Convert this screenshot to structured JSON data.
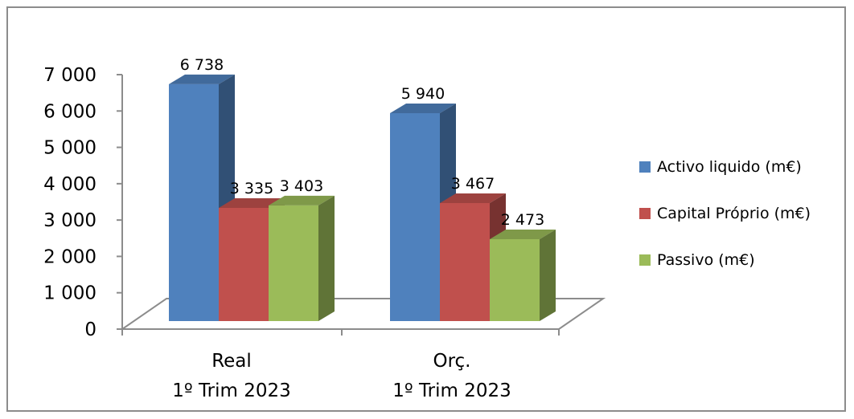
{
  "chart_data": {
    "type": "bar",
    "title": "",
    "xlabel": "",
    "ylabel": "",
    "ylim": [
      0,
      7000
    ],
    "yticks": [
      0,
      1000,
      2000,
      3000,
      4000,
      5000,
      6000,
      7000
    ],
    "ytick_labels": [
      "0",
      "1 000",
      "2 000",
      "3 000",
      "4 000",
      "5 000",
      "6 000",
      "7 000"
    ],
    "categories": [
      [
        "Real",
        "1º Trim 2023"
      ],
      [
        "Orç.",
        "1º Trim 2023"
      ]
    ],
    "series": [
      {
        "name": "Activo liquido (m€)",
        "color": "#4f81bd",
        "values": [
          6738,
          5940
        ],
        "labels": [
          "6 738",
          "5 940"
        ]
      },
      {
        "name": "Capital Próprio (m€)",
        "color": "#c0504d",
        "values": [
          3335,
          3467
        ],
        "labels": [
          "3 335",
          "3 467"
        ]
      },
      {
        "name": "Passivo (m€)",
        "color": "#9bbb59",
        "values": [
          3403,
          2473
        ],
        "labels": [
          "3 403",
          "2 473"
        ]
      }
    ],
    "legend_position": "right",
    "grid": false,
    "style": "3d-column"
  }
}
